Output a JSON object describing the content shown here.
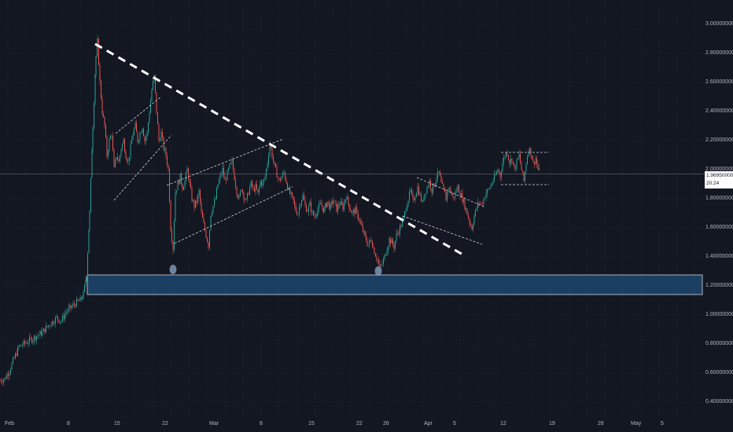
{
  "chart_data": {
    "type": "candlestick",
    "y_ticks": [
      "0.40000000",
      "0.60000000",
      "0.80000000",
      "1.00000000",
      "1.20000000",
      "1.40000000",
      "1.60000000",
      "1.80000000",
      "2.00000000",
      "2.20000000",
      "2.40000000",
      "2.60000000",
      "2.80000000",
      "3.00000000"
    ],
    "ylim": [
      0.34,
      3.1
    ],
    "x_ticks": [
      "Feb",
      "8",
      "15",
      "22",
      "Mar",
      "8",
      "15",
      "22",
      "26",
      "Apr",
      "5",
      "12",
      "19",
      "26",
      "May",
      "5"
    ],
    "last_price": "1.96950000",
    "countdown": "20:24",
    "grid": true,
    "price_path": [
      [
        0,
        0.55
      ],
      [
        6,
        0.56
      ],
      [
        12,
        0.62
      ],
      [
        18,
        0.7
      ],
      [
        24,
        0.78
      ],
      [
        30,
        0.8
      ],
      [
        36,
        0.82
      ],
      [
        42,
        0.84
      ],
      [
        48,
        0.86
      ],
      [
        54,
        0.88
      ],
      [
        60,
        0.92
      ],
      [
        66,
        0.95
      ],
      [
        72,
        0.98
      ],
      [
        78,
        0.96
      ],
      [
        84,
        1.02
      ],
      [
        90,
        1.05
      ],
      [
        96,
        1.08
      ],
      [
        102,
        1.1
      ],
      [
        106,
        1.14
      ],
      [
        110,
        1.28
      ],
      [
        114,
        1.7
      ],
      [
        118,
        2.3
      ],
      [
        122,
        2.78
      ],
      [
        124,
        2.88
      ],
      [
        127,
        2.6
      ],
      [
        130,
        2.4
      ],
      [
        133,
        2.3
      ],
      [
        136,
        2.1
      ],
      [
        139,
        2.2
      ],
      [
        142,
        2.25
      ],
      [
        145,
        2.0
      ],
      [
        148,
        2.1
      ],
      [
        151,
        2.05
      ],
      [
        154,
        2.15
      ],
      [
        157,
        2.2
      ],
      [
        160,
        2.1
      ],
      [
        163,
        2.05
      ],
      [
        166,
        2.15
      ],
      [
        169,
        2.25
      ],
      [
        172,
        2.3
      ],
      [
        175,
        2.2
      ],
      [
        178,
        2.25
      ],
      [
        181,
        2.3
      ],
      [
        184,
        2.2
      ],
      [
        187,
        2.25
      ],
      [
        190,
        2.4
      ],
      [
        193,
        2.55
      ],
      [
        196,
        2.64
      ],
      [
        199,
        2.4
      ],
      [
        202,
        2.2
      ],
      [
        205,
        2.25
      ],
      [
        208,
        2.15
      ],
      [
        211,
        2.1
      ],
      [
        214,
        2.0
      ],
      [
        217,
        1.6
      ],
      [
        220,
        1.46
      ],
      [
        223,
        1.85
      ],
      [
        226,
        1.9
      ],
      [
        229,
        1.95
      ],
      [
        232,
        1.88
      ],
      [
        235,
        1.92
      ],
      [
        238,
        2.0
      ],
      [
        241,
        1.9
      ],
      [
        244,
        1.8
      ],
      [
        247,
        1.75
      ],
      [
        250,
        1.78
      ],
      [
        253,
        1.85
      ],
      [
        256,
        1.7
      ],
      [
        259,
        1.62
      ],
      [
        262,
        1.55
      ],
      [
        265,
        1.48
      ],
      [
        268,
        1.7
      ],
      [
        271,
        1.75
      ],
      [
        274,
        1.8
      ],
      [
        277,
        1.9
      ],
      [
        280,
        1.95
      ],
      [
        283,
        2.0
      ],
      [
        286,
        1.92
      ],
      [
        289,
        1.97
      ],
      [
        292,
        2.02
      ],
      [
        295,
        2.05
      ],
      [
        298,
        1.95
      ],
      [
        301,
        1.85
      ],
      [
        304,
        1.8
      ],
      [
        307,
        1.88
      ],
      [
        310,
        1.82
      ],
      [
        313,
        1.78
      ],
      [
        316,
        1.85
      ],
      [
        319,
        1.9
      ],
      [
        322,
        1.86
      ],
      [
        325,
        1.88
      ],
      [
        328,
        1.83
      ],
      [
        331,
        1.92
      ],
      [
        334,
        1.9
      ],
      [
        337,
        1.95
      ],
      [
        340,
        2.05
      ],
      [
        343,
        2.18
      ],
      [
        346,
        2.1
      ],
      [
        349,
        2.02
      ],
      [
        352,
        1.97
      ],
      [
        355,
        1.92
      ],
      [
        358,
        1.95
      ],
      [
        361,
        1.98
      ],
      [
        364,
        1.92
      ],
      [
        367,
        1.85
      ],
      [
        370,
        1.82
      ],
      [
        373,
        1.78
      ],
      [
        376,
        1.72
      ],
      [
        379,
        1.7
      ],
      [
        382,
        1.78
      ],
      [
        385,
        1.82
      ],
      [
        388,
        1.75
      ],
      [
        391,
        1.72
      ],
      [
        394,
        1.76
      ],
      [
        397,
        1.7
      ],
      [
        400,
        1.68
      ],
      [
        404,
        1.73
      ],
      [
        408,
        1.76
      ],
      [
        412,
        1.72
      ],
      [
        416,
        1.78
      ],
      [
        420,
        1.74
      ],
      [
        424,
        1.79
      ],
      [
        428,
        1.73
      ],
      [
        432,
        1.77
      ],
      [
        436,
        1.74
      ],
      [
        440,
        1.82
      ],
      [
        444,
        1.75
      ],
      [
        448,
        1.7
      ],
      [
        452,
        1.72
      ],
      [
        456,
        1.67
      ],
      [
        460,
        1.6
      ],
      [
        464,
        1.54
      ],
      [
        468,
        1.48
      ],
      [
        472,
        1.52
      ],
      [
        476,
        1.44
      ],
      [
        480,
        1.38
      ],
      [
        483,
        1.32
      ],
      [
        486,
        1.35
      ],
      [
        489,
        1.4
      ],
      [
        492,
        1.46
      ],
      [
        495,
        1.52
      ],
      [
        498,
        1.5
      ],
      [
        501,
        1.47
      ],
      [
        504,
        1.55
      ],
      [
        507,
        1.58
      ],
      [
        510,
        1.62
      ],
      [
        513,
        1.66
      ],
      [
        516,
        1.74
      ],
      [
        519,
        1.8
      ],
      [
        522,
        1.85
      ],
      [
        525,
        1.78
      ],
      [
        528,
        1.83
      ],
      [
        531,
        1.88
      ],
      [
        534,
        1.82
      ],
      [
        537,
        1.77
      ],
      [
        540,
        1.84
      ],
      [
        543,
        1.88
      ],
      [
        546,
        1.92
      ],
      [
        549,
        1.86
      ],
      [
        552,
        1.9
      ],
      [
        555,
        1.95
      ],
      [
        558,
        1.98
      ],
      [
        561,
        1.9
      ],
      [
        564,
        1.86
      ],
      [
        567,
        1.8
      ],
      [
        570,
        1.88
      ],
      [
        573,
        1.85
      ],
      [
        576,
        1.8
      ],
      [
        579,
        1.84
      ],
      [
        582,
        1.88
      ],
      [
        585,
        1.84
      ],
      [
        588,
        1.8
      ],
      [
        591,
        1.75
      ],
      [
        594,
        1.7
      ],
      [
        597,
        1.64
      ],
      [
        600,
        1.6
      ],
      [
        603,
        1.68
      ],
      [
        606,
        1.74
      ],
      [
        609,
        1.78
      ],
      [
        612,
        1.76
      ],
      [
        615,
        1.8
      ],
      [
        618,
        1.84
      ],
      [
        621,
        1.86
      ],
      [
        624,
        1.89
      ],
      [
        627,
        1.93
      ],
      [
        630,
        1.96
      ],
      [
        633,
        2.0
      ],
      [
        636,
        1.96
      ],
      [
        639,
        2.05
      ],
      [
        642,
        2.1
      ],
      [
        645,
        2.12
      ],
      [
        648,
        2.05
      ],
      [
        651,
        2.08
      ],
      [
        654,
        2.0
      ],
      [
        657,
        2.05
      ],
      [
        660,
        2.1
      ],
      [
        663,
        2.0
      ],
      [
        666,
        1.92
      ],
      [
        669,
        2.05
      ],
      [
        672,
        2.15
      ],
      [
        675,
        2.12
      ],
      [
        678,
        2.04
      ],
      [
        681,
        2.08
      ],
      [
        684,
        2.0
      ],
      [
        687,
        1.98
      ]
    ]
  }
}
